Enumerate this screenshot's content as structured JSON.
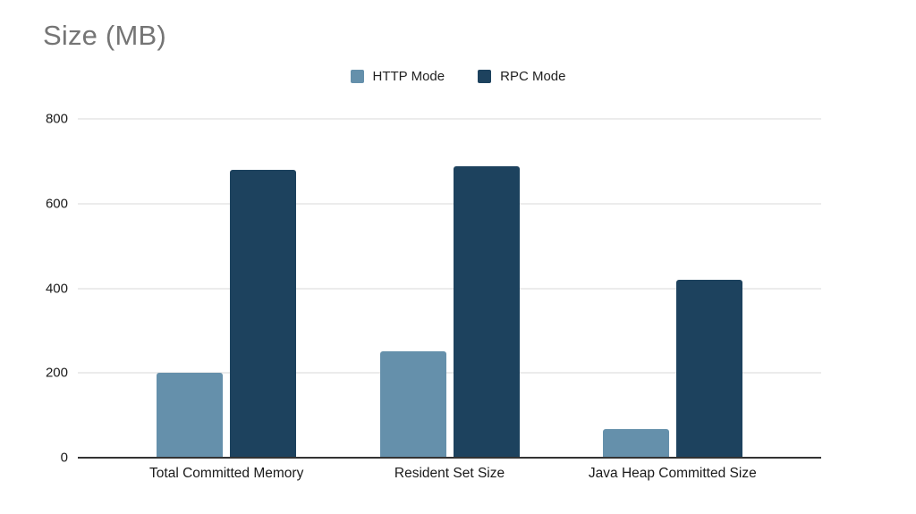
{
  "chart_data": {
    "type": "bar",
    "title": "Size (MB)",
    "xlabel": "",
    "ylabel": "",
    "categories": [
      "Total Committed Memory",
      "Resident Set Size",
      "Java Heap Committed Size"
    ],
    "series": [
      {
        "name": "HTTP Mode",
        "color": "#6590AB",
        "values": [
          200,
          252,
          68
        ]
      },
      {
        "name": "RPC Mode",
        "color": "#1D425E",
        "values": [
          680,
          688,
          420
        ]
      }
    ],
    "ylim": [
      0,
      800
    ],
    "yticks": [
      0,
      200,
      400,
      600,
      800
    ],
    "grid": true,
    "legend_position": "top-center",
    "group_centers_pct": [
      20,
      50,
      80
    ],
    "colors": {
      "background": "#ffffff",
      "title_text": "#757575",
      "axis_text": "#1a1a1a",
      "gridline": "#d9d9d9",
      "baseline": "#333333"
    }
  }
}
